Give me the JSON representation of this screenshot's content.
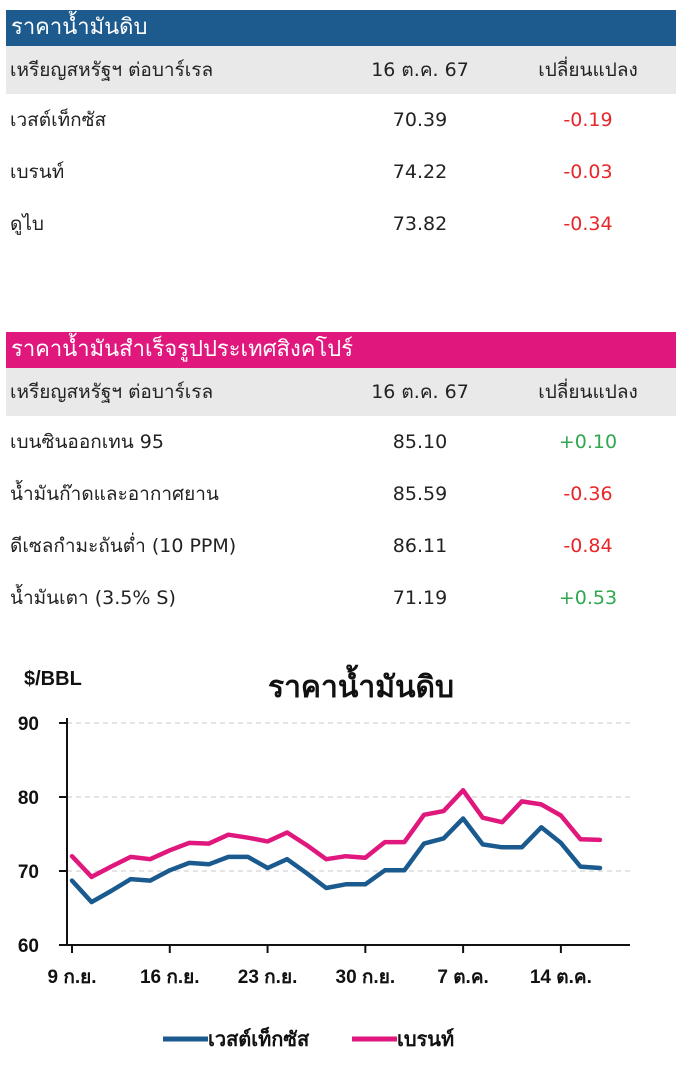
{
  "crude": {
    "title": "ราคาน้ำมันดิบ",
    "header": [
      "เหรียญสหรัฐฯ ต่อบาร์เรล",
      "16 ต.ค. 67",
      "เปลี่ยนแปลง"
    ],
    "rows": [
      {
        "name": "เวสต์เท็กซัส",
        "price": "70.39",
        "change": "-0.19",
        "dir": "neg"
      },
      {
        "name": "เบรนท์",
        "price": "74.22",
        "change": "-0.03",
        "dir": "neg"
      },
      {
        "name": "ดูไบ",
        "price": "73.82",
        "change": "-0.34",
        "dir": "neg"
      }
    ]
  },
  "refined": {
    "title": "ราคาน้ำมันสำเร็จรูปประเทศสิงคโปร์",
    "header": [
      "เหรียญสหรัฐฯ ต่อบาร์เรล",
      "16 ต.ค. 67",
      "เปลี่ยนแปลง"
    ],
    "rows": [
      {
        "name": "เบนซินออกเทน 95",
        "price": "85.10",
        "change": "+0.10",
        "dir": "pos"
      },
      {
        "name": "น้ำมันก๊าดและอากาศยาน",
        "price": "85.59",
        "change": "-0.36",
        "dir": "neg"
      },
      {
        "name": "ดีเซลกำมะถันต่ำ (10 PPM)",
        "price": "86.11",
        "change": "-0.84",
        "dir": "neg"
      },
      {
        "name": "น้ำมันเตา (3.5% S)",
        "price": "71.19",
        "change": "+0.53",
        "dir": "pos"
      }
    ]
  },
  "colors": {
    "wti": "#1b5a8e",
    "brent": "#e0177d",
    "neg": "#e8262a",
    "pos": "#2fa84f"
  },
  "chart_data": {
    "type": "line",
    "title": "ราคาน้ำมันดิบ",
    "ylabel": "$/BBL",
    "ylim": [
      60,
      90
    ],
    "yticks": [
      60,
      70,
      80,
      90
    ],
    "grid": true,
    "legend_position": "bottom",
    "x": [
      "9 ก.ย.",
      "10 ก.ย.",
      "11 ก.ย.",
      "12 ก.ย.",
      "13 ก.ย.",
      "16 ก.ย.",
      "17 ก.ย.",
      "18 ก.ย.",
      "19 ก.ย.",
      "20 ก.ย.",
      "23 ก.ย.",
      "24 ก.ย.",
      "25 ก.ย.",
      "26 ก.ย.",
      "27 ก.ย.",
      "30 ก.ย.",
      "1 ต.ค.",
      "2 ต.ค.",
      "3 ต.ค.",
      "4 ต.ค.",
      "7 ต.ค.",
      "8 ต.ค.",
      "9 ต.ค.",
      "10 ต.ค.",
      "11 ต.ค.",
      "14 ต.ค.",
      "15 ต.ค.",
      "16 ต.ค."
    ],
    "xtick_labels": [
      "9 ก.ย.",
      "16 ก.ย.",
      "23 ก.ย.",
      "30 ก.ย.",
      "7 ต.ค.",
      "14 ต.ค."
    ],
    "series": [
      {
        "name": "เวสต์เท็กซัส",
        "color": "#1b5a8e",
        "values": [
          68.7,
          65.8,
          67.3,
          68.9,
          68.7,
          70.1,
          71.1,
          70.9,
          71.9,
          71.9,
          70.4,
          71.6,
          69.7,
          67.7,
          68.2,
          68.2,
          70.1,
          70.1,
          73.7,
          74.4,
          77.1,
          73.6,
          73.2,
          73.2,
          75.9,
          73.8,
          70.6,
          70.4
        ]
      },
      {
        "name": "เบรนท์",
        "color": "#e0177d",
        "values": [
          72.0,
          69.2,
          70.6,
          71.9,
          71.6,
          72.8,
          73.8,
          73.7,
          74.9,
          74.5,
          74.0,
          75.2,
          73.5,
          71.6,
          72.0,
          71.8,
          73.9,
          73.9,
          77.6,
          78.1,
          80.9,
          77.2,
          76.6,
          79.4,
          79.0,
          77.5,
          74.3,
          74.2
        ]
      }
    ]
  }
}
